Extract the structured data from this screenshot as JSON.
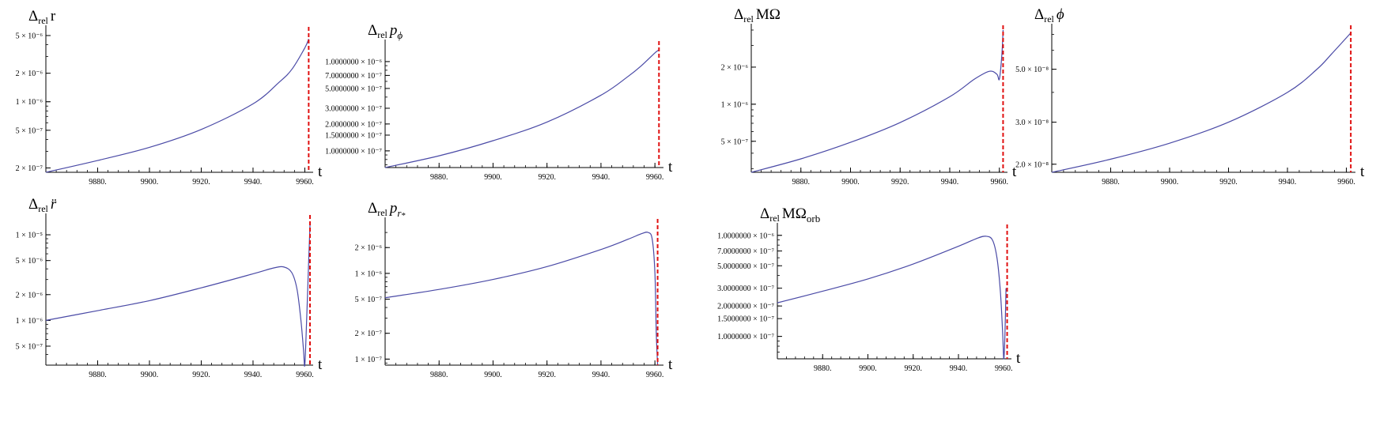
{
  "figure": {
    "colors": {
      "curve": "#4a4aa6",
      "marker": "#e01010",
      "axis": "#000000"
    },
    "x_axis_label": "t"
  },
  "chart_data": [
    {
      "type": "line",
      "title": "Δrel r",
      "yscale": "log",
      "xlim": [
        9860,
        9962
      ],
      "ylim": [
        1.8e-07,
        5.5e-06
      ],
      "xticks": [
        9880,
        9900,
        9920,
        9940,
        9960
      ],
      "xtick_labels": [
        "9880.",
        "9900.",
        "9920.",
        "9940.",
        "9960."
      ],
      "yticks": [
        2e-07,
        5e-07,
        1e-06,
        2e-06,
        5e-06
      ],
      "ytick_labels": [
        "2 × 10⁻⁷",
        "5 × 10⁻⁷",
        "1 × 10⁻⁶",
        "2 × 10⁻⁶",
        "5 × 10⁻⁶"
      ],
      "vline_x": 9961.5,
      "series": [
        {
          "x": [
            9860,
            9880,
            9900,
            9920,
            9940,
            9950,
            9955,
            9960,
            9961.5
          ],
          "y": [
            1.8e-07,
            2.4e-07,
            3.3e-07,
            5.1e-07,
            9.5e-07,
            1.6e-06,
            2.2e-06,
            3.7e-06,
            4.6e-06
          ]
        }
      ]
    },
    {
      "type": "line",
      "title": "Δrel pϕ",
      "yscale": "log",
      "xlim": [
        9860,
        9962
      ],
      "ylim": [
        6.5e-08,
        1.5e-06
      ],
      "xticks": [
        9880,
        9900,
        9920,
        9940,
        9960
      ],
      "xtick_labels": [
        "9880.",
        "9900.",
        "9920.",
        "9940.",
        "9960."
      ],
      "yticks": [
        1e-07,
        1.5e-07,
        2e-07,
        3e-07,
        5e-07,
        7e-07,
        1e-06
      ],
      "ytick_labels": [
        "1.0000000 × 10⁻⁷",
        "1.5000000 × 10⁻⁷",
        "2.0000000 × 10⁻⁷",
        "3.0000000 × 10⁻⁷",
        "5.0000000 × 10⁻⁷",
        "7.0000000 × 10⁻⁷",
        "1.0000000 × 10⁻⁶"
      ],
      "vline_x": 9961.5,
      "series": [
        {
          "x": [
            9860,
            9880,
            9900,
            9920,
            9940,
            9950,
            9955,
            9960,
            9961.5
          ],
          "y": [
            6.5e-08,
            8.8e-08,
            1.3e-07,
            2.1e-07,
            4.2e-07,
            6.8e-07,
            9e-07,
            1.25e-06,
            1.35e-06
          ]
        }
      ]
    },
    {
      "type": "line",
      "title": "Δrel MΩ",
      "yscale": "log",
      "xlim": [
        9860,
        9962
      ],
      "ylim": [
        2.8e-07,
        4e-06
      ],
      "xticks": [
        9880,
        9900,
        9920,
        9940,
        9960
      ],
      "xtick_labels": [
        "9880.",
        "9900.",
        "9920.",
        "9940.",
        "9960."
      ],
      "yticks": [
        5e-07,
        1e-06,
        2e-06
      ],
      "ytick_labels": [
        "5 × 10⁻⁷",
        "1 × 10⁻⁶",
        "2 × 10⁻⁶"
      ],
      "vline_x": 9961.5,
      "series": [
        {
          "x": [
            9860,
            9880,
            9900,
            9920,
            9940,
            9950,
            9956,
            9959,
            9960,
            9961,
            9961.5
          ],
          "y": [
            2.8e-07,
            3.6e-07,
            4.9e-07,
            7.1e-07,
            1.15e-06,
            1.6e-06,
            1.85e-06,
            1.75e-06,
            1.6e-06,
            2.5e-06,
            4e-06
          ]
        }
      ]
    },
    {
      "type": "line",
      "title": "Δrel ϕ",
      "yscale": "log",
      "xlim": [
        9860,
        9962
      ],
      "ylim": [
        1.85e-08,
        7.3e-08
      ],
      "xticks": [
        9880,
        9900,
        9920,
        9940,
        9960
      ],
      "xtick_labels": [
        "9880.",
        "9900.",
        "9920.",
        "9940.",
        "9960."
      ],
      "yticks": [
        2e-08,
        3e-08,
        5e-08
      ],
      "ytick_labels": [
        "2.0 × 10⁻⁸",
        "3.0 × 10⁻⁸",
        "5.0 × 10⁻⁸"
      ],
      "vline_x": 9961.5,
      "series": [
        {
          "x": [
            9860,
            9880,
            9900,
            9920,
            9940,
            9950,
            9955,
            9961.5
          ],
          "y": [
            1.85e-08,
            2.1e-08,
            2.45e-08,
            3e-08,
            4e-08,
            5e-08,
            5.8e-08,
            7.1e-08
          ]
        }
      ]
    },
    {
      "type": "line",
      "title": "Δrel r̈",
      "yscale": "log",
      "xlim": [
        9860,
        9962
      ],
      "ylim": [
        3e-07,
        1.5e-05
      ],
      "xticks": [
        9880,
        9900,
        9920,
        9940,
        9960
      ],
      "xtick_labels": [
        "9880.",
        "9900.",
        "9920.",
        "9940.",
        "9960."
      ],
      "yticks": [
        5e-07,
        1e-06,
        2e-06,
        5e-06,
        1e-05
      ],
      "ytick_labels": [
        "5 × 10⁻⁷",
        "1 × 10⁻⁶",
        "2 × 10⁻⁶",
        "5 × 10⁻⁶",
        "1 × 10⁻⁵"
      ],
      "vline_x": 9962,
      "series": [
        {
          "x": [
            9860,
            9880,
            9900,
            9920,
            9940,
            9948,
            9952,
            9955,
            9957,
            9958.5,
            9959.5,
            9960,
            9960.7,
            9961.5,
            9962
          ],
          "y": [
            1e-06,
            1.3e-06,
            1.7e-06,
            2.4e-06,
            3.5e-06,
            4.1e-06,
            4.2e-06,
            3.6e-06,
            2.3e-06,
            1e-06,
            4.5e-07,
            3e-07,
            1e-06,
            5e-06,
            1.3e-05
          ]
        }
      ]
    },
    {
      "type": "line",
      "title": "Δrel pr*",
      "yscale": "log",
      "xlim": [
        9860,
        9962
      ],
      "ylim": [
        8.5e-08,
        3.8e-06
      ],
      "xticks": [
        9880,
        9900,
        9920,
        9940,
        9960
      ],
      "xtick_labels": [
        "9880.",
        "9900.",
        "9920.",
        "9940.",
        "9960."
      ],
      "yticks": [
        1e-07,
        2e-07,
        5e-07,
        1e-06,
        2e-06
      ],
      "ytick_labels": [
        "1 × 10⁻⁷",
        "2 × 10⁻⁷",
        "5 × 10⁻⁷",
        "1 × 10⁻⁶",
        "2 × 10⁻⁶"
      ],
      "vline_x": 9961,
      "series": [
        {
          "x": [
            9860,
            9880,
            9900,
            9920,
            9940,
            9950,
            9955,
            9957.5,
            9959,
            9960,
            9960.5,
            9961
          ],
          "y": [
            5.2e-07,
            6.5e-07,
            8.5e-07,
            1.2e-06,
            1.9e-06,
            2.5e-06,
            2.9e-06,
            3e-06,
            2.5e-06,
            1e-06,
            2e-07,
            8.5e-08
          ]
        }
      ]
    },
    {
      "type": "line",
      "title": "Δrel MΩorb",
      "yscale": "log",
      "xlim": [
        9860,
        9962
      ],
      "ylim": [
        6e-08,
        1.15e-06
      ],
      "xticks": [
        9880,
        9900,
        9920,
        9940,
        9960
      ],
      "xtick_labels": [
        "9880.",
        "9900.",
        "9920.",
        "9940.",
        "9960."
      ],
      "yticks": [
        1e-07,
        1.5e-07,
        2e-07,
        3e-07,
        5e-07,
        7e-07,
        1e-06
      ],
      "ytick_labels": [
        "1.0000000 × 10⁻⁷",
        "1.5000000 × 10⁻⁷",
        "2.0000000 × 10⁻⁷",
        "3.0000000 × 10⁻⁷",
        "5.0000000 × 10⁻⁷",
        "7.0000000 × 10⁻⁷",
        "1.0000000 × 10⁻⁶"
      ],
      "vline_x": 9961.5,
      "series": [
        {
          "x": [
            9860,
            9880,
            9900,
            9920,
            9940,
            9948,
            9952,
            9955,
            9957,
            9958.5,
            9959.5,
            9960,
            9960.5,
            9961
          ],
          "y": [
            2.15e-07,
            2.8e-07,
            3.7e-07,
            5.2e-07,
            7.8e-07,
            9.3e-07,
            9.8e-07,
            9e-07,
            6e-07,
            2.8e-07,
            1.1e-07,
            6e-08,
            1e-07,
            3e-07
          ]
        }
      ]
    }
  ]
}
